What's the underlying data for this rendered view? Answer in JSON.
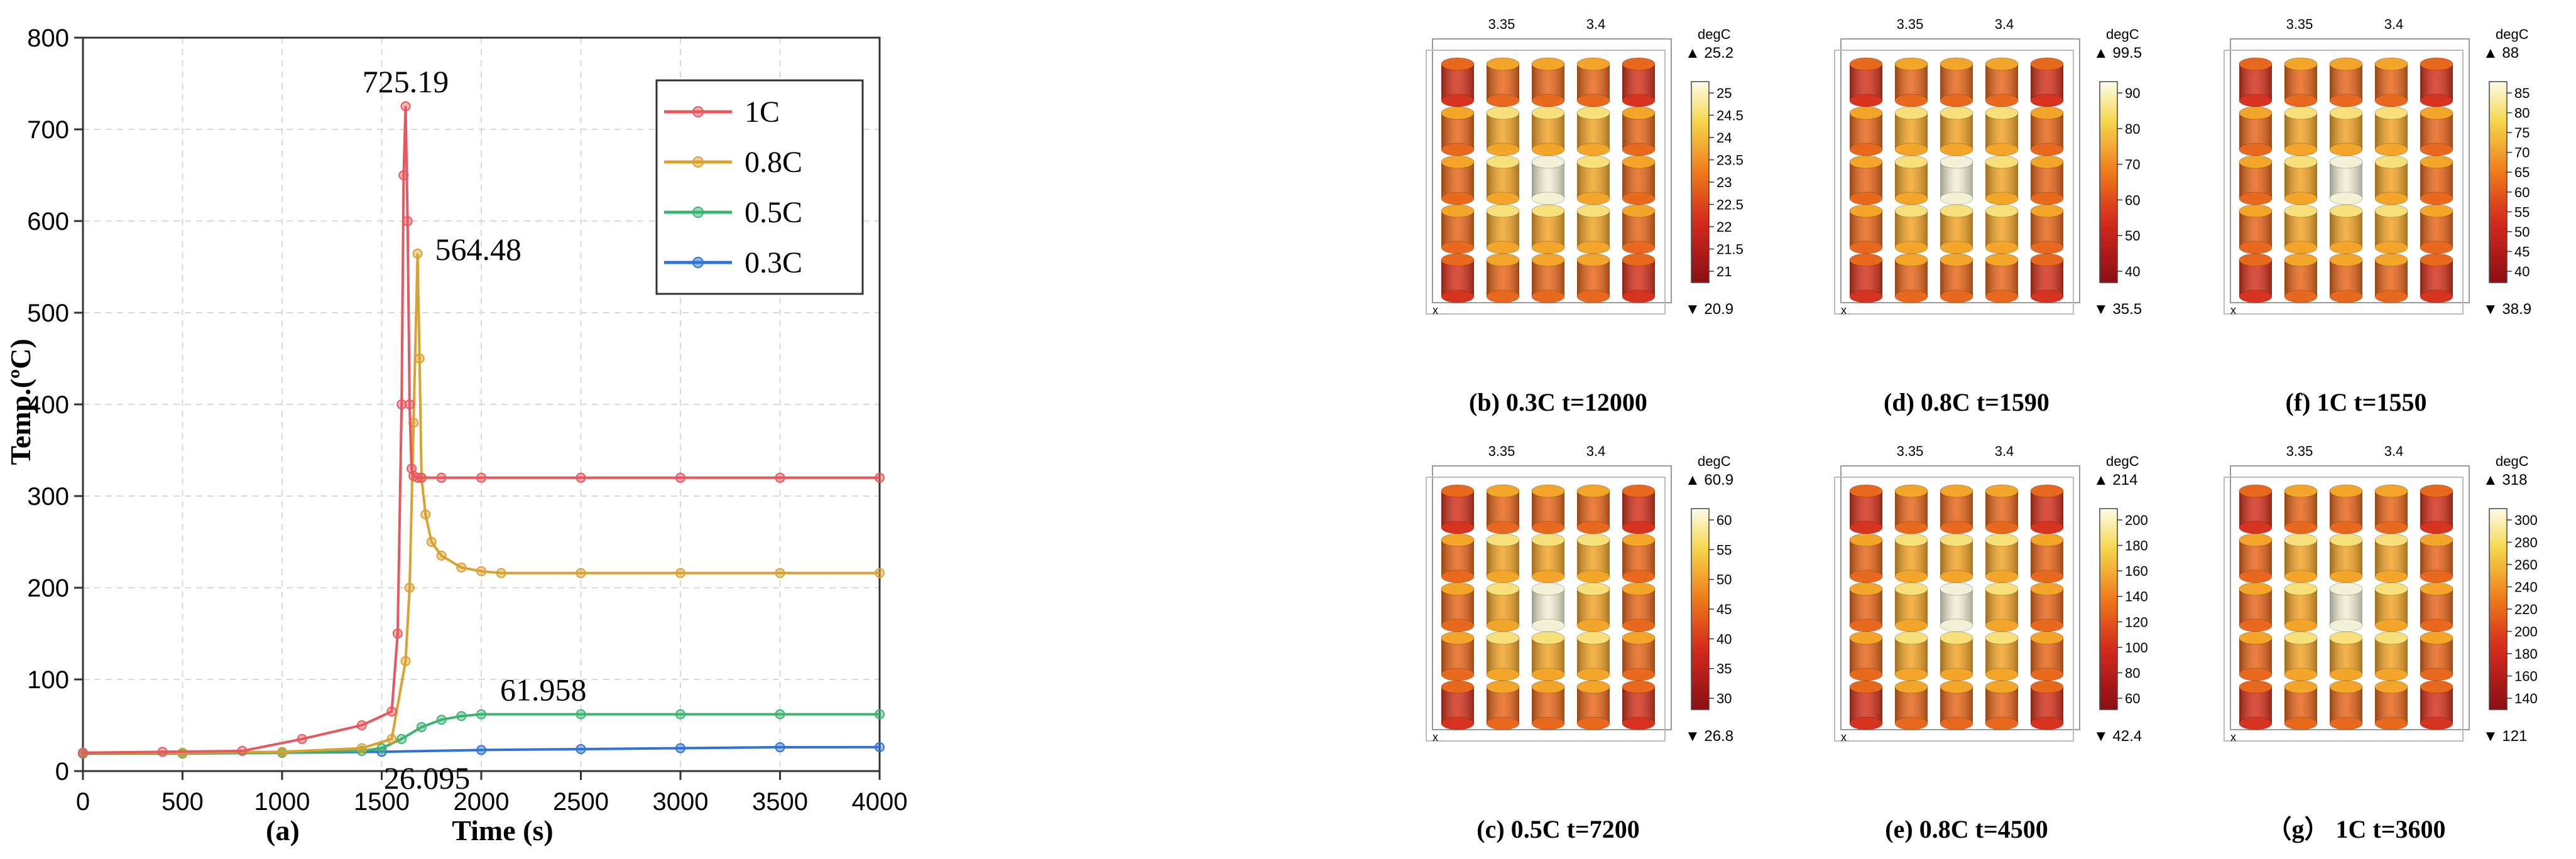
{
  "chart_data": [
    {
      "type": "line",
      "panel_label": "(a)",
      "xlabel": "Time (s)",
      "ylabel": "Temp.(ºC)",
      "xlim": [
        0,
        4000
      ],
      "ylim": [
        0,
        800
      ],
      "xticks": [
        0,
        500,
        1000,
        1500,
        2000,
        2500,
        3000,
        3500,
        4000
      ],
      "yticks": [
        0,
        100,
        200,
        300,
        400,
        500,
        600,
        700,
        800
      ],
      "grid": true,
      "legend_position": "top-right",
      "series": [
        {
          "name": "1C",
          "color": "#e8575e",
          "x": [
            0,
            400,
            800,
            1100,
            1400,
            1550,
            1580,
            1600,
            1610,
            1620,
            1630,
            1640,
            1650,
            1660,
            1680,
            1700,
            1800,
            2000,
            2500,
            3000,
            3500,
            4000
          ],
          "y": [
            20,
            21,
            22,
            35,
            50,
            65,
            150,
            400,
            650,
            725.19,
            600,
            400,
            330,
            322,
            320,
            320,
            320,
            320,
            320,
            320,
            320,
            320
          ]
        },
        {
          "name": "0.8C",
          "color": "#d9a230",
          "x": [
            0,
            500,
            1000,
            1400,
            1550,
            1620,
            1640,
            1660,
            1680,
            1690,
            1700,
            1720,
            1750,
            1800,
            1900,
            2000,
            2100,
            2500,
            3000,
            3500,
            4000
          ],
          "y": [
            20,
            20,
            21,
            25,
            35,
            120,
            200,
            380,
            564.48,
            450,
            320,
            280,
            250,
            235,
            222,
            218,
            216,
            216,
            216,
            216,
            216
          ]
        },
        {
          "name": "0.5C",
          "color": "#3eb371",
          "x": [
            0,
            500,
            1000,
            1400,
            1500,
            1600,
            1700,
            1800,
            1900,
            2000,
            2500,
            3000,
            3500,
            4000
          ],
          "y": [
            19,
            19,
            20,
            22,
            25,
            35,
            48,
            56,
            60,
            61.958,
            62,
            62,
            62,
            62
          ]
        },
        {
          "name": "0.3C",
          "color": "#2e73d6",
          "x": [
            0,
            500,
            1000,
            1500,
            2000,
            2500,
            3000,
            3500,
            4000
          ],
          "y": [
            19,
            20,
            20,
            21,
            23,
            24,
            25,
            26,
            26.095
          ]
        }
      ],
      "annotations": [
        {
          "text": "725.19",
          "x": 1620,
          "y": 725.19
        },
        {
          "text": "564.48",
          "x": 1680,
          "y": 564.48
        },
        {
          "text": "61.958",
          "x": 2000,
          "y": 61.958
        },
        {
          "text": "26.095",
          "x": 1700,
          "y": 26.095
        }
      ]
    },
    {
      "type": "heatmap",
      "note": "3D thermal simulation snapshots of a 5x5 cylindrical cell module",
      "panels": [
        {
          "label": "(b)  0.3C       t=12000",
          "unit": "degC",
          "max_label": "25.2",
          "min_label": "20.9",
          "ticks": [
            "25",
            "24.5",
            "24",
            "23.5",
            "23",
            "22.5",
            "22",
            "21.5",
            "21"
          ],
          "max": 25.2,
          "min": 20.9
        },
        {
          "label": "(d)  0.8C       t=1590",
          "unit": "degC",
          "max_label": "99.5",
          "min_label": "35.5",
          "ticks": [
            "90",
            "80",
            "70",
            "60",
            "50",
            "40"
          ],
          "max": 99.5,
          "min": 35.5
        },
        {
          "label": "(f)  1C       t=1550",
          "unit": "degC",
          "max_label": "88",
          "min_label": "38.9",
          "ticks": [
            "85",
            "80",
            "75",
            "70",
            "65",
            "60",
            "55",
            "50",
            "45",
            "40"
          ],
          "max": 88,
          "min": 38.9
        },
        {
          "label": "(c)  0.5C       t=7200",
          "unit": "degC",
          "max_label": "60.9",
          "min_label": "26.8",
          "ticks": [
            "60",
            "55",
            "50",
            "45",
            "40",
            "35",
            "30"
          ],
          "max": 60.9,
          "min": 26.8
        },
        {
          "label": "(e)  0.8C       t=4500",
          "unit": "degC",
          "max_label": "214",
          "min_label": "42.4",
          "ticks": [
            "200",
            "180",
            "160",
            "140",
            "120",
            "100",
            "80",
            "60"
          ],
          "max": 214,
          "min": 42.4
        },
        {
          "label": "（g）  1C       t=3600",
          "unit": "degC",
          "max_label": "318",
          "min_label": "121",
          "ticks": [
            "300",
            "280",
            "260",
            "240",
            "220",
            "200",
            "180",
            "160",
            "140"
          ],
          "max": 318,
          "min": 121
        }
      ],
      "axis_ticks": [
        "3.35",
        "3.4"
      ],
      "axis_letter": "x"
    }
  ]
}
